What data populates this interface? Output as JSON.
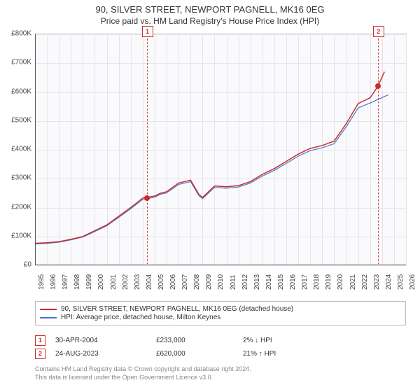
{
  "title_line1": "90, SILVER STREET, NEWPORT PAGNELL, MK16 0EG",
  "title_line2": "Price paid vs. HM Land Registry's House Price Index (HPI)",
  "chart": {
    "type": "line",
    "background_color": "#fafafc",
    "grid_color": "#e4e4ec",
    "x_start_year": 1995,
    "x_end_year": 2026,
    "x_tick_step": 1,
    "ylim": [
      0,
      800000
    ],
    "y_tick_step": 100000,
    "y_tick_labels": [
      "£0",
      "£100K",
      "£200K",
      "£300K",
      "£400K",
      "£500K",
      "£600K",
      "£700K",
      "£800K"
    ],
    "series": [
      {
        "label": "90, SILVER STREET, NEWPORT PAGNELL, MK16 0EG (detached house)",
        "color": "#cb2d2b",
        "line_width": 1.5,
        "points_year": [
          1995,
          1996,
          1997,
          1998,
          1999,
          2000,
          2001,
          2002,
          2003,
          2004,
          2005,
          2005.5,
          2006,
          2007,
          2008,
          2008.7,
          2009,
          2010,
          2011,
          2012,
          2013,
          2014,
          2015,
          2016,
          2017,
          2018,
          2019,
          2020,
          2021,
          2022,
          2023,
          2023.65,
          2024.2
        ],
        "points_value": [
          76000,
          78000,
          82000,
          90000,
          100000,
          120000,
          140000,
          170000,
          200000,
          233000,
          240000,
          250000,
          255000,
          285000,
          295000,
          245000,
          235000,
          275000,
          272000,
          276000,
          290000,
          315000,
          335000,
          360000,
          385000,
          405000,
          415000,
          430000,
          490000,
          560000,
          580000,
          620000,
          670000
        ]
      },
      {
        "label": "HPI: Average price, detached house, Milton Keynes",
        "color": "#4a76c7",
        "line_width": 1.2,
        "points_year": [
          1995,
          1996,
          1997,
          1998,
          1999,
          2000,
          2001,
          2002,
          2003,
          2004,
          2005,
          2005.5,
          2006,
          2007,
          2008,
          2008.7,
          2009,
          2010,
          2011,
          2012,
          2013,
          2014,
          2015,
          2016,
          2017,
          2018,
          2019,
          2020,
          2021,
          2022,
          2023,
          2024.5
        ],
        "points_value": [
          74000,
          76000,
          80000,
          88000,
          98000,
          117000,
          137000,
          166000,
          196000,
          228000,
          236000,
          246000,
          251000,
          280000,
          290000,
          241000,
          231000,
          270000,
          267000,
          271000,
          285000,
          309000,
          329000,
          353000,
          378000,
          397000,
          407000,
          421000,
          479000,
          545000,
          562000,
          590000
        ]
      }
    ],
    "markers": [
      {
        "id": "1",
        "year": 2004.33,
        "value": 233000,
        "color": "#cb2d2b"
      },
      {
        "id": "2",
        "year": 2023.65,
        "value": 620000,
        "color": "#cb2d2b"
      }
    ],
    "marker_box_top_offset": -12
  },
  "legend": {
    "items": [
      {
        "color": "#cb2d2b",
        "text": "90, SILVER STREET, NEWPORT PAGNELL, MK16 0EG (detached house)"
      },
      {
        "color": "#4a76c7",
        "text": "HPI: Average price, detached house, Milton Keynes"
      }
    ]
  },
  "sales": [
    {
      "id": "1",
      "color": "#cb2d2b",
      "date": "30-APR-2004",
      "price": "£233,000",
      "delta": "2% ↓ HPI"
    },
    {
      "id": "2",
      "color": "#cb2d2b",
      "date": "24-AUG-2023",
      "price": "£620,000",
      "delta": "21% ↑ HPI"
    }
  ],
  "footer_line1": "Contains HM Land Registry data © Crown copyright and database right 2024.",
  "footer_line2": "This data is licensed under the Open Government Licence v3.0."
}
